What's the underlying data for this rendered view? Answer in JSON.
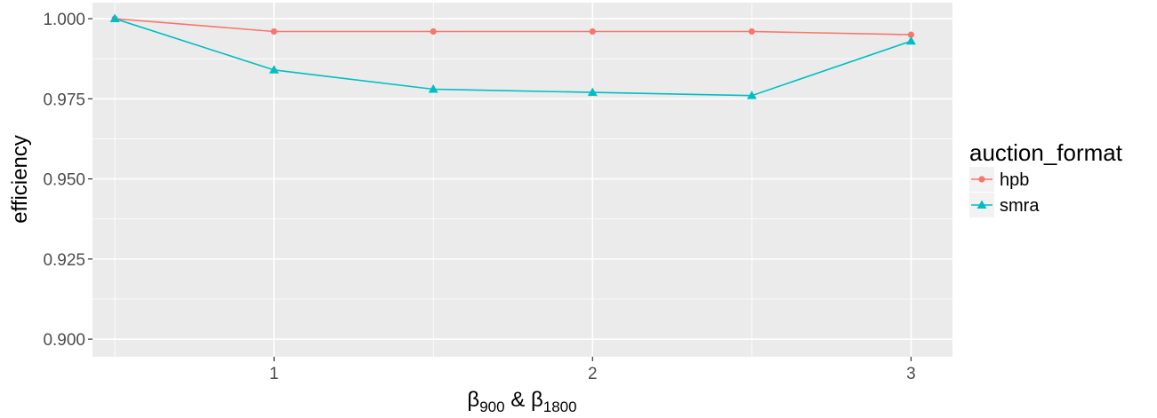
{
  "chart_data": {
    "type": "line",
    "x": [
      0.5,
      1,
      1.5,
      2,
      2.5,
      3
    ],
    "xticks": [
      "1",
      "2",
      "3"
    ],
    "xlabel": {
      "beta": "β",
      "sub1": "900",
      "amp": " & ",
      "sub2": "1800"
    },
    "ylabel": "efficiency",
    "yticks": [
      "0.900",
      "0.925",
      "0.950",
      "0.975",
      "1.000"
    ],
    "xlim": [
      0.43,
      3.13
    ],
    "ylim": [
      0.8945,
      1.005
    ],
    "grid": true,
    "legend": {
      "title": "auction_format",
      "position": "right"
    },
    "series": [
      {
        "name": "hpb",
        "color": "#F8766D",
        "marker": "circle",
        "values": [
          1.0,
          0.996,
          0.996,
          0.996,
          0.996,
          0.995
        ]
      },
      {
        "name": "smra",
        "color": "#00BFC4",
        "marker": "triangle",
        "values": [
          1.0,
          0.984,
          0.978,
          0.977,
          0.976,
          0.993
        ]
      }
    ]
  }
}
